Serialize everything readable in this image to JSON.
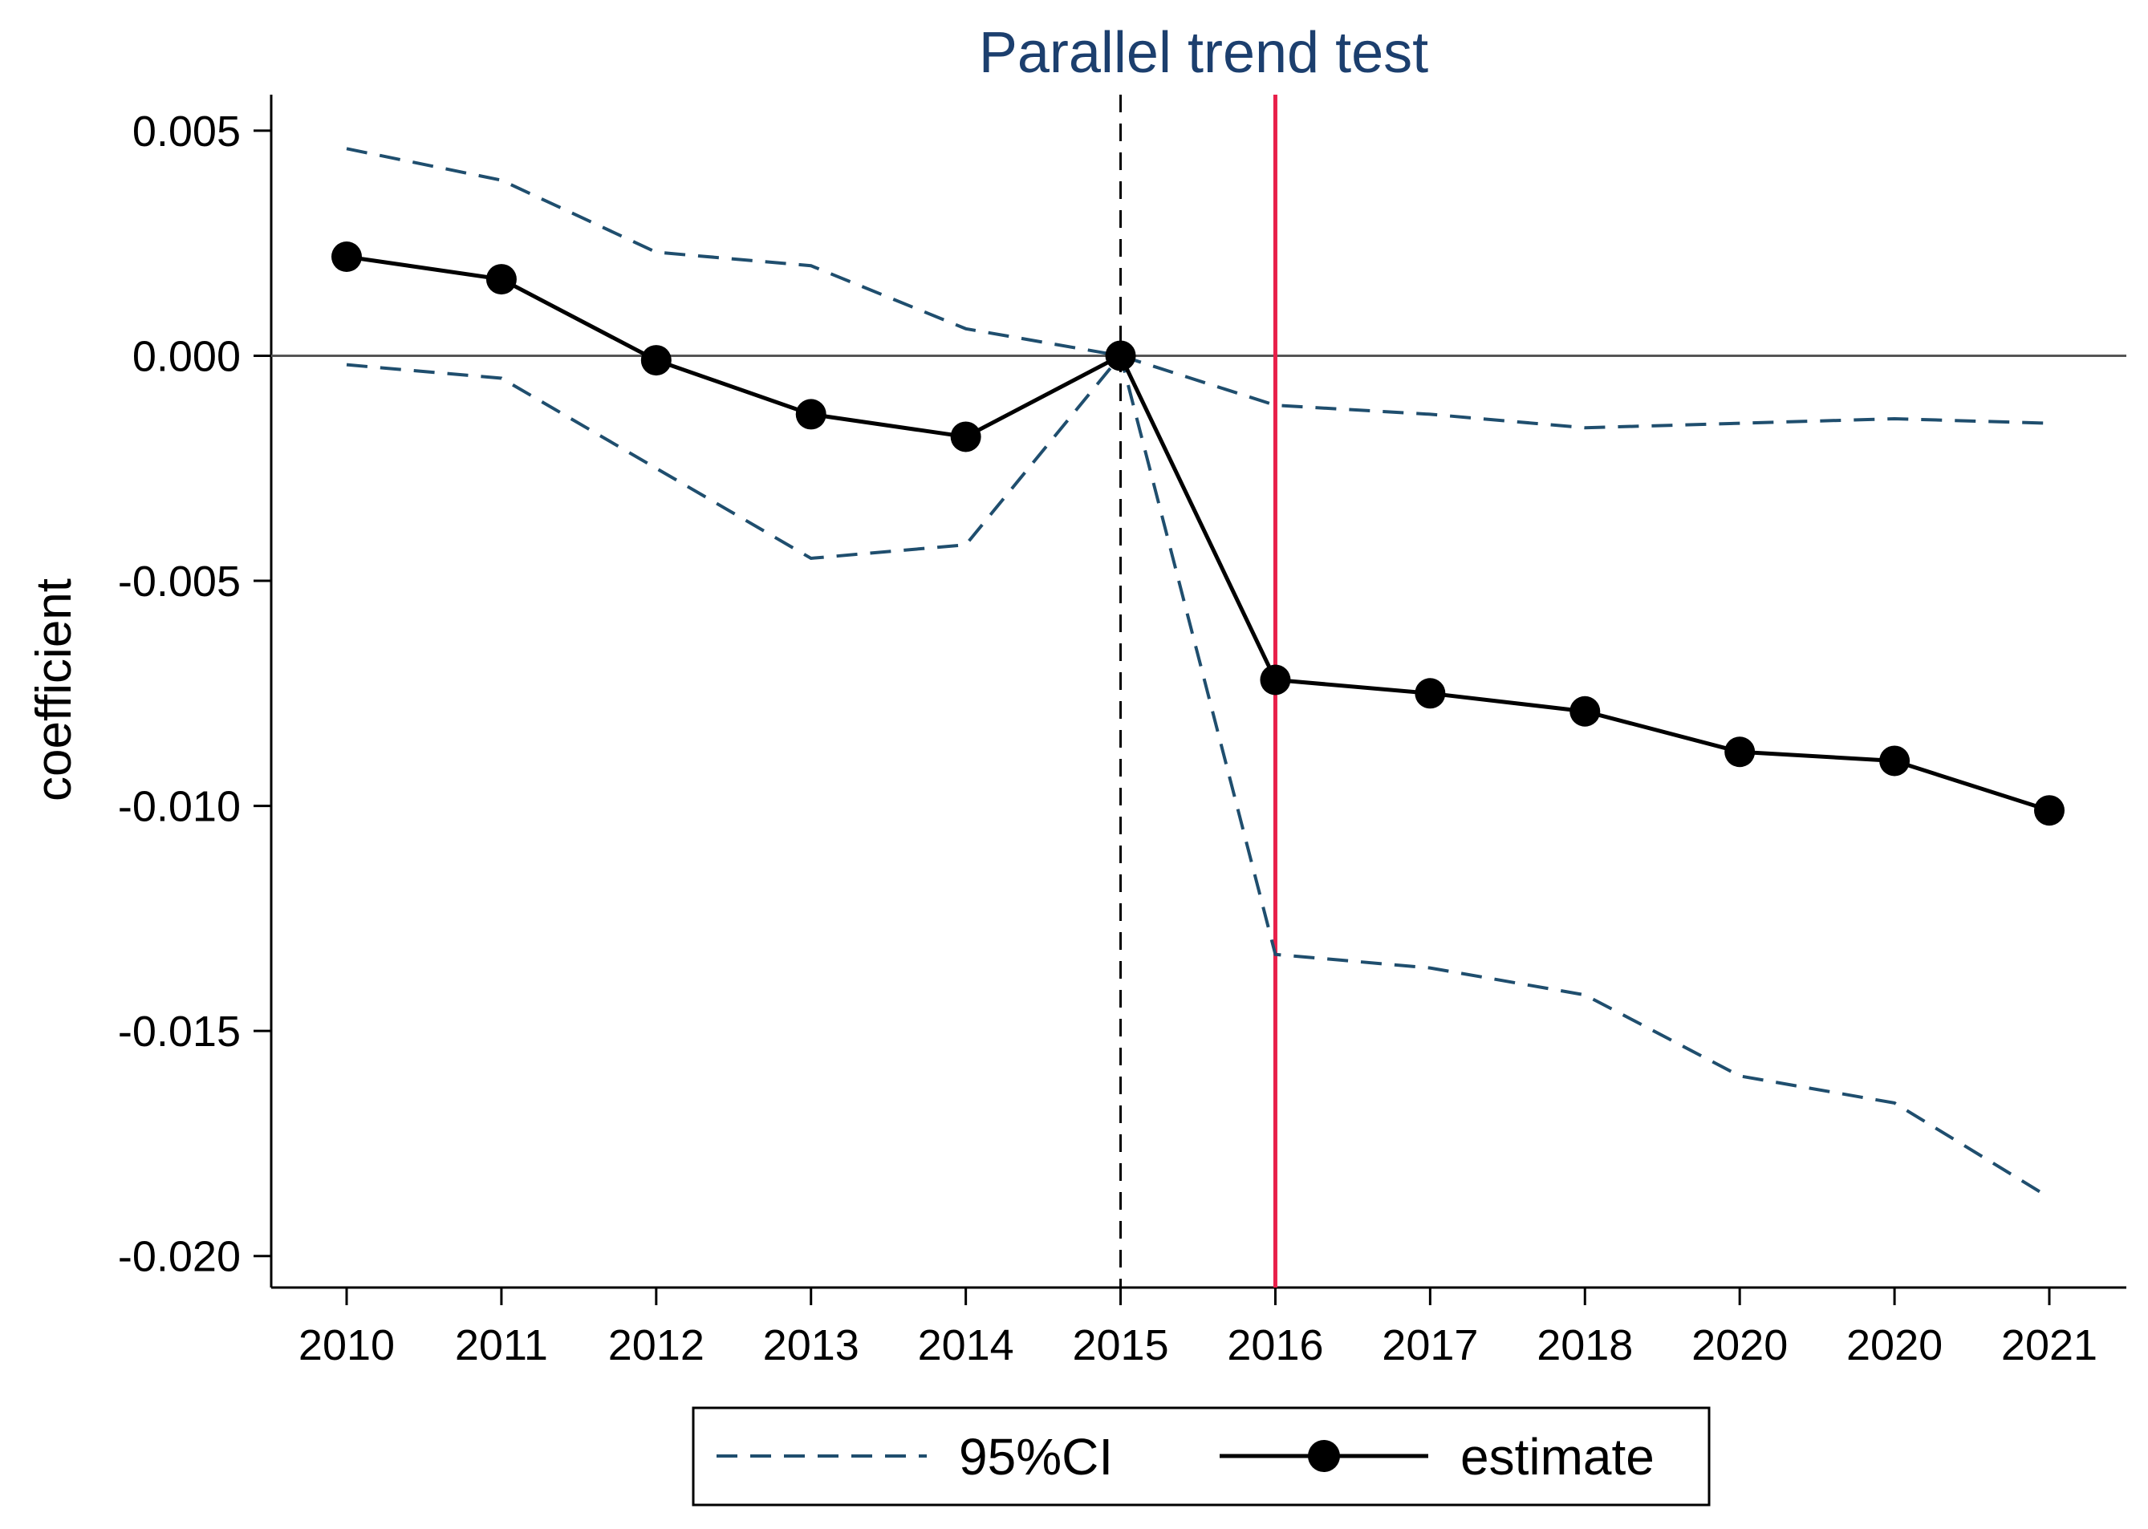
{
  "chart_data": {
    "type": "line",
    "title": "Parallel trend test",
    "xlabel": "",
    "ylabel": "coefficient",
    "categories": [
      "2010",
      "2011",
      "2012",
      "2013",
      "2014",
      "2015",
      "2016",
      "2017",
      "2018",
      "2020",
      "2020",
      "2021"
    ],
    "ylim": [
      -0.0207,
      0.0058
    ],
    "yticks": [
      0.005,
      0.0,
      -0.005,
      -0.01,
      -0.015,
      -0.02
    ],
    "ytick_labels": [
      "0.005",
      "0.000",
      "-0.005",
      "-0.010",
      "-0.015",
      "-0.020"
    ],
    "grid": false,
    "reference_lines": {
      "horizontal_zero": 0,
      "dashed_vertical_at": "2015",
      "red_vertical_at": "2016"
    },
    "series": [
      {
        "name": "estimate",
        "style": "solid-markers",
        "color": "#000000",
        "values": [
          0.0022,
          0.0017,
          -0.0001,
          -0.0013,
          -0.0018,
          0.0,
          -0.0072,
          -0.0075,
          -0.0079,
          -0.0088,
          -0.009,
          -0.0101
        ]
      },
      {
        "name": "95%CI",
        "style": "dashed",
        "color": "#1f4e6e",
        "upper": [
          0.0046,
          0.0039,
          0.0023,
          0.002,
          0.0006,
          0.0,
          -0.0011,
          -0.0013,
          -0.0016,
          -0.0015,
          -0.0014,
          -0.0015
        ],
        "lower": [
          -0.0002,
          -0.0005,
          -0.0025,
          -0.0045,
          -0.0042,
          0.0,
          -0.0133,
          -0.0136,
          -0.0142,
          -0.016,
          -0.0166,
          -0.0187
        ]
      }
    ],
    "legend": {
      "position": "bottom",
      "entries": [
        "95%CI",
        "estimate"
      ]
    },
    "colors": {
      "ci": "#1f4e6e",
      "estimate": "#000000",
      "red_line": "#e8204a",
      "title": "#1c3f6e"
    }
  }
}
